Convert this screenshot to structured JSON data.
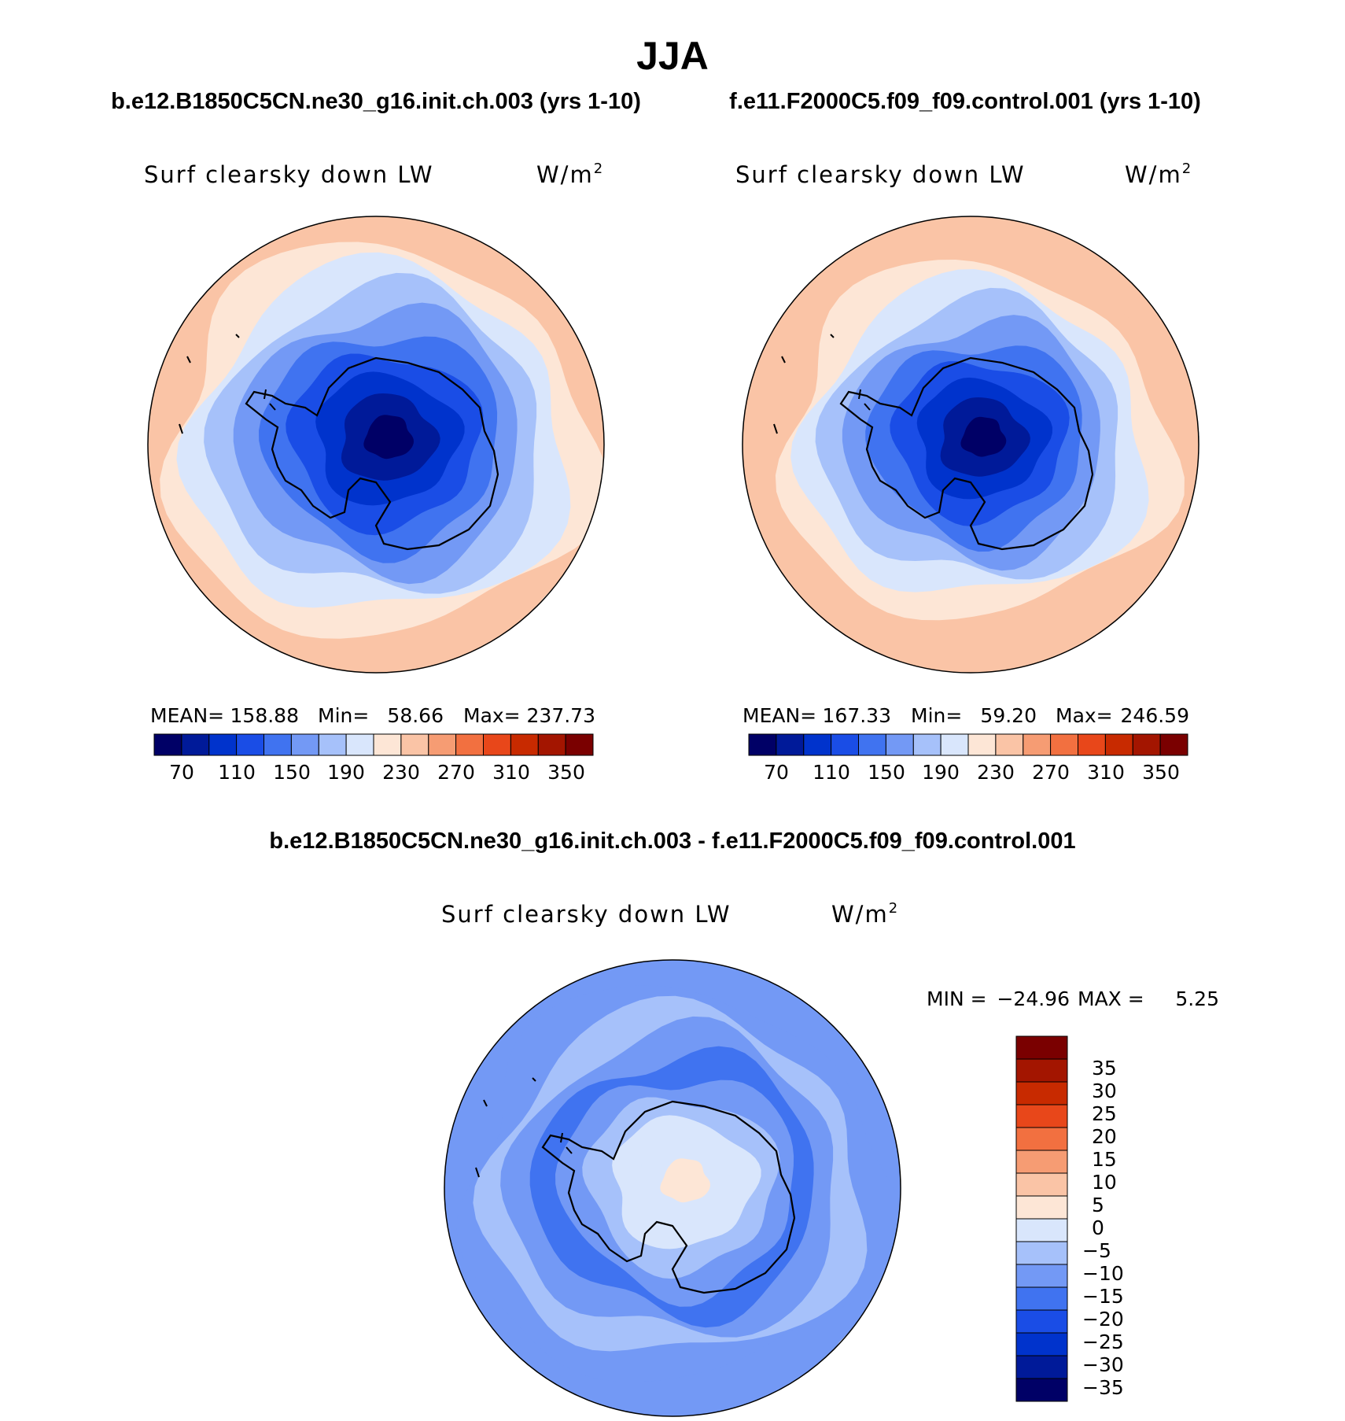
{
  "chart_data": [
    {
      "type": "heatmap",
      "title": "b.e12.B1850C5CN.ne30_g16.init.ch.003 (yrs 1-10)",
      "variable": "Surf clearsky down LW",
      "units": "W/m",
      "units_exp": "2",
      "projection": "south polar stereographic",
      "stats": {
        "mean_label": "MEAN=",
        "mean": "158.88",
        "min_label": "Min=",
        "min": "58.66",
        "max_label": "Max=",
        "max": "237.73"
      },
      "contour_levels": [
        70,
        90,
        110,
        130,
        150,
        170,
        190,
        210,
        230,
        250,
        270,
        290,
        310,
        330,
        350
      ],
      "colorbar_labels": [
        "70",
        "110",
        "150",
        "190",
        "230",
        "270",
        "310",
        "350"
      ],
      "rings_from_pole": [
        58.66,
        80,
        100,
        120,
        140,
        160,
        180,
        200,
        220,
        237.73
      ]
    },
    {
      "type": "heatmap",
      "title": "f.e11.F2000C5.f09_f09.control.001 (yrs 1-10)",
      "variable": "Surf clearsky down LW",
      "units": "W/m",
      "units_exp": "2",
      "projection": "south polar stereographic",
      "stats": {
        "mean_label": "MEAN=",
        "mean": "167.33",
        "min_label": "Min=",
        "min": "59.20",
        "max_label": "Max=",
        "max": "246.59"
      },
      "contour_levels": [
        70,
        90,
        110,
        130,
        150,
        170,
        190,
        210,
        230,
        250,
        270,
        290,
        310,
        330,
        350
      ],
      "colorbar_labels": [
        "70",
        "110",
        "150",
        "190",
        "230",
        "270",
        "310",
        "350"
      ],
      "rings_from_pole": [
        59.2,
        80,
        100,
        120,
        140,
        160,
        180,
        200,
        220,
        240,
        246.59
      ]
    },
    {
      "type": "heatmap",
      "title": "b.e12.B1850C5CN.ne30_g16.init.ch.003 - f.e11.F2000C5.f09_f09.control.001",
      "variable": "Surf clearsky down LW",
      "units": "W/m",
      "units_exp": "2",
      "projection": "south polar stereographic",
      "stats": {
        "min_label": "MIN =",
        "min": "−24.96",
        "max_label": "MAX =",
        "max": "5.25"
      },
      "contour_levels": [
        -35,
        -30,
        -25,
        -20,
        -15,
        -10,
        -5,
        0,
        5,
        10,
        15,
        20,
        25,
        30,
        35
      ],
      "colorbar_labels": [
        "35",
        "30",
        "25",
        "20",
        "15",
        "10",
        "5",
        "0",
        "−5",
        "−10",
        "−15",
        "−20",
        "−25",
        "−30",
        "−35"
      ],
      "rings_from_pole": [
        2,
        -1,
        -4,
        -9,
        -12,
        -16,
        -12,
        -8,
        -14,
        -11
      ]
    }
  ],
  "figure": {
    "season": "JJA"
  },
  "palette": [
    "#000066",
    "#001a99",
    "#0033cc",
    "#1a4de6",
    "#4073f0",
    "#7399f5",
    "#a6c1fa",
    "#d9e6fc",
    "#fde6d6",
    "#fac4a6",
    "#f69c73",
    "#f27040",
    "#e8471a",
    "#c82a00",
    "#a31500",
    "#7a0000"
  ]
}
